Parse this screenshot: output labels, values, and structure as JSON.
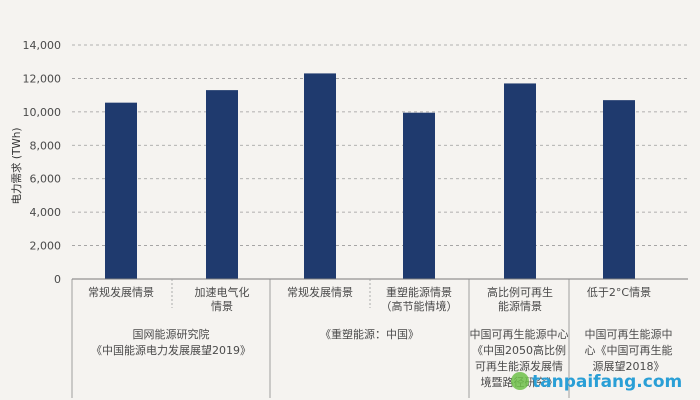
{
  "chart_data": {
    "type": "bar",
    "ylabel": "电力需求 (TWh)",
    "ylim": [
      0,
      14000
    ],
    "yticks": [
      "0",
      "2,000",
      "4,000",
      "6,000",
      "8,000",
      "10,000",
      "12,000",
      "14,000"
    ],
    "grid": true,
    "bar_color": "#1f3a6e",
    "categories": [
      [
        "常规发展情景"
      ],
      [
        "加速电气化",
        "情景"
      ],
      [
        "常规发展情景"
      ],
      [
        "重塑能源情景",
        "（高节能情境）"
      ],
      [
        "高比例可再生",
        "能源情景"
      ],
      [
        "低于2°C情景"
      ]
    ],
    "values": [
      10550,
      11300,
      12300,
      9950,
      11700,
      10700
    ],
    "groups": [
      {
        "label_lines": [
          "国网能源研究院",
          "《中国能源电力发展展望2019》"
        ]
      },
      {
        "label_lines": [
          "《重塑能源：中国》"
        ]
      },
      {
        "label_lines": [
          "中国可再生能源中心",
          "《中国2050高比例",
          "可再生能源发展情",
          "境暨路径研究》"
        ]
      },
      {
        "label_lines": [
          "中国可再生能源中",
          "心《中国可再生能",
          "源展望2018》"
        ]
      }
    ]
  },
  "watermark": "tanpaifang.com"
}
